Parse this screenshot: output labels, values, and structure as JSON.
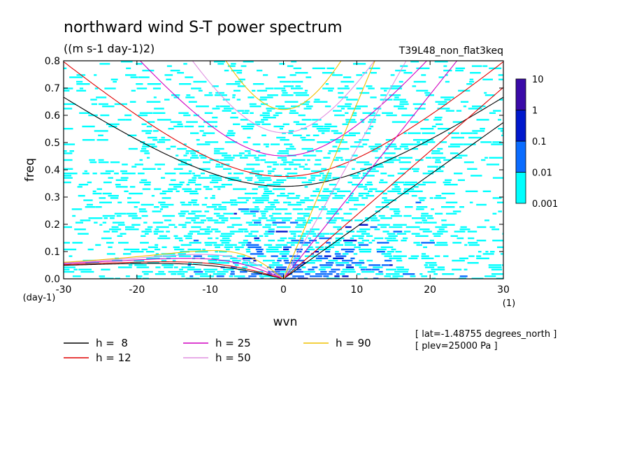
{
  "chart_data": {
    "type": "heatmap",
    "title": "northward wind S-T power spectrum",
    "units": "((m s-1 day-1)2)",
    "run_label": "T39L48_non_flat3keq",
    "xlabel": "wvn",
    "ylabel": "freq",
    "x_unit_label": "(1)",
    "y_unit_label": "(day-1)",
    "xlim": [
      -30,
      30
    ],
    "ylim": [
      0,
      0.8
    ],
    "x_ticks": [
      -30,
      -20,
      -10,
      0,
      10,
      20,
      30
    ],
    "x_tick_labels": [
      "-30",
      "-20",
      "-10",
      "0",
      "10",
      "20",
      "30"
    ],
    "y_ticks": [
      0,
      0.1,
      0.2,
      0.3,
      0.4,
      0.5,
      0.6,
      0.7,
      0.8
    ],
    "y_tick_labels": [
      "0.0",
      "0.1",
      "0.2",
      "0.3",
      "0.4",
      "0.5",
      "0.6",
      "0.7",
      "0.8"
    ],
    "colorbar": {
      "levels": [
        0.001,
        0.01,
        0.1,
        1,
        10
      ],
      "labels": [
        "0.001",
        "0.01",
        "0.1",
        "1",
        "10"
      ],
      "colors": [
        "#00ffff",
        "#0a6cff",
        "#0018cc",
        "#3a0aa8"
      ]
    },
    "dispersion_curves": [
      {
        "h": 8,
        "label": "h =  8",
        "color": "#000000"
      },
      {
        "h": 12,
        "label": "h = 12",
        "color": "#e00000"
      },
      {
        "h": 25,
        "label": "h = 25",
        "color": "#d000c0"
      },
      {
        "h": 50,
        "label": "h = 50",
        "color": "#e090e0"
      },
      {
        "h": 90,
        "label": "h = 90",
        "color": "#f0c000"
      }
    ],
    "info": [
      "[ lat=-1.48755 degrees_north ]",
      "[ plev=25000 Pa ]"
    ]
  }
}
